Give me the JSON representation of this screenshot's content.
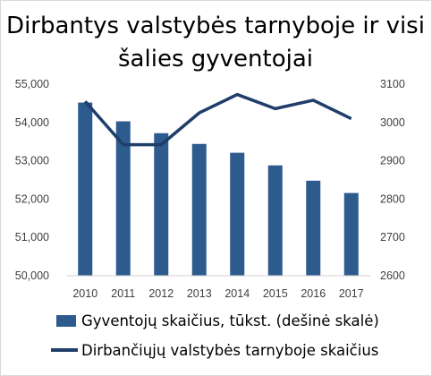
{
  "chart_data": {
    "type": "bar",
    "title_lines": [
      "Dirbantys valstybės tarnyboje ir visi",
      "šalies gyventojai"
    ],
    "categories": [
      "2010",
      "2011",
      "2012",
      "2013",
      "2014",
      "2015",
      "2016",
      "2017"
    ],
    "y_left": {
      "ticks": [
        "50,000",
        "51,000",
        "52,000",
        "53,000",
        "54,000",
        "55,000"
      ],
      "lim": [
        50000,
        55000
      ]
    },
    "y_right": {
      "ticks": [
        "2600",
        "2700",
        "2800",
        "2900",
        "3000",
        "3100"
      ],
      "lim": [
        2600,
        3100
      ]
    },
    "series": [
      {
        "name": "Gyventojų skaičius, tūkst. (dešinė skalė)",
        "type": "bar",
        "axis": "right",
        "color": "#2e5b8e",
        "values": [
          3052,
          3003,
          2972,
          2944,
          2921,
          2888,
          2848,
          2816
        ]
      },
      {
        "name": "Dirbančiųjų valstybės tarnyboje skaičius",
        "type": "line",
        "axis": "left",
        "color": "#1f3e6a",
        "values": [
          54550,
          53420,
          53420,
          54250,
          54730,
          54360,
          54580,
          54100
        ]
      }
    ],
    "grid": false,
    "legend": "bottom"
  }
}
